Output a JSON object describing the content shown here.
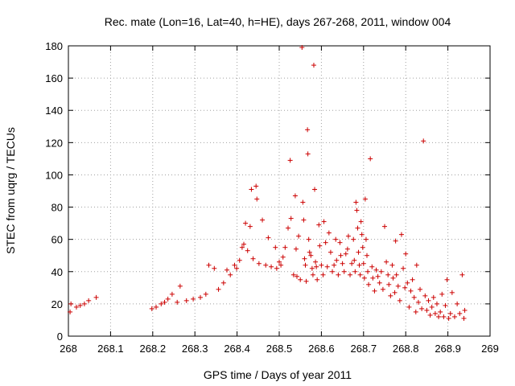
{
  "chart_data": {
    "type": "scatter",
    "title": "Rec. mate (Lon=16, Lat=40, h=HE), days 267-268, 2011, window 004",
    "xlabel": "GPS time / Days of year 2011",
    "ylabel": "STEC from uqrg / TECUs",
    "xlim": [
      268,
      269
    ],
    "ylim": [
      0,
      180
    ],
    "xticks": [
      "268",
      "268.1",
      "268.2",
      "268.3",
      "268.4",
      "268.5",
      "268.6",
      "268.7",
      "268.8",
      "268.9",
      "269"
    ],
    "yticks": [
      "0",
      "20",
      "40",
      "60",
      "80",
      "100",
      "120",
      "140",
      "160",
      "180"
    ],
    "xtick_values": [
      268,
      268.1,
      268.2,
      268.3,
      268.4,
      268.5,
      268.6,
      268.7,
      268.8,
      268.9,
      269
    ],
    "ytick_values": [
      0,
      20,
      40,
      60,
      80,
      100,
      120,
      140,
      160,
      180
    ],
    "grid": true,
    "marker": "+",
    "marker_color": "#cc0000",
    "points": [
      [
        268.004,
        15
      ],
      [
        268.006,
        20
      ],
      [
        268.019,
        18
      ],
      [
        268.028,
        19
      ],
      [
        268.038,
        20
      ],
      [
        268.048,
        22
      ],
      [
        268.066,
        24
      ],
      [
        268.198,
        17
      ],
      [
        268.208,
        18
      ],
      [
        268.22,
        20
      ],
      [
        268.228,
        21
      ],
      [
        268.236,
        23
      ],
      [
        268.246,
        26
      ],
      [
        268.258,
        21
      ],
      [
        268.265,
        31
      ],
      [
        268.28,
        22
      ],
      [
        268.296,
        23
      ],
      [
        268.313,
        24
      ],
      [
        268.326,
        26
      ],
      [
        268.333,
        44
      ],
      [
        268.346,
        42
      ],
      [
        268.356,
        29
      ],
      [
        268.368,
        33
      ],
      [
        268.376,
        41
      ],
      [
        268.384,
        38
      ],
      [
        268.394,
        44
      ],
      [
        268.399,
        42
      ],
      [
        268.406,
        47
      ],
      [
        268.412,
        55
      ],
      [
        268.416,
        57
      ],
      [
        268.42,
        70
      ],
      [
        268.425,
        53
      ],
      [
        268.431,
        68
      ],
      [
        268.434,
        91
      ],
      [
        268.438,
        48
      ],
      [
        268.445,
        93
      ],
      [
        268.447,
        85
      ],
      [
        268.452,
        45
      ],
      [
        268.46,
        72
      ],
      [
        268.468,
        44
      ],
      [
        268.474,
        61
      ],
      [
        268.481,
        43
      ],
      [
        268.491,
        55
      ],
      [
        268.494,
        42
      ],
      [
        268.5,
        46
      ],
      [
        268.504,
        44
      ],
      [
        268.509,
        49
      ],
      [
        268.514,
        55
      ],
      [
        268.521,
        67
      ],
      [
        268.526,
        109
      ],
      [
        268.528,
        73
      ],
      [
        268.534,
        38
      ],
      [
        268.538,
        87
      ],
      [
        268.54,
        54
      ],
      [
        268.542,
        37
      ],
      [
        268.546,
        62
      ],
      [
        268.55,
        35
      ],
      [
        268.554,
        179
      ],
      [
        268.556,
        83
      ],
      [
        268.558,
        72
      ],
      [
        268.56,
        48
      ],
      [
        268.562,
        44
      ],
      [
        268.564,
        34
      ],
      [
        268.567,
        128
      ],
      [
        268.568,
        113
      ],
      [
        268.57,
        60
      ],
      [
        268.572,
        52
      ],
      [
        268.575,
        50
      ],
      [
        268.578,
        42
      ],
      [
        268.58,
        38
      ],
      [
        268.582,
        168
      ],
      [
        268.584,
        91
      ],
      [
        268.586,
        46
      ],
      [
        268.588,
        43
      ],
      [
        268.59,
        35
      ],
      [
        268.594,
        69
      ],
      [
        268.596,
        56
      ],
      [
        268.6,
        44
      ],
      [
        268.604,
        38
      ],
      [
        268.606,
        71
      ],
      [
        268.61,
        58
      ],
      [
        268.614,
        43
      ],
      [
        268.618,
        64
      ],
      [
        268.622,
        52
      ],
      [
        268.626,
        40
      ],
      [
        268.63,
        44
      ],
      [
        268.634,
        60
      ],
      [
        268.636,
        47
      ],
      [
        268.64,
        38
      ],
      [
        268.644,
        58
      ],
      [
        268.646,
        50
      ],
      [
        268.65,
        45
      ],
      [
        268.654,
        40
      ],
      [
        268.658,
        51
      ],
      [
        268.662,
        54
      ],
      [
        268.664,
        62
      ],
      [
        268.668,
        38
      ],
      [
        268.672,
        45
      ],
      [
        268.676,
        60
      ],
      [
        268.678,
        47
      ],
      [
        268.68,
        40
      ],
      [
        268.682,
        83
      ],
      [
        268.684,
        78
      ],
      [
        268.686,
        67
      ],
      [
        268.688,
        52
      ],
      [
        268.69,
        44
      ],
      [
        268.692,
        38
      ],
      [
        268.694,
        71
      ],
      [
        268.696,
        63
      ],
      [
        268.698,
        55
      ],
      [
        268.7,
        45
      ],
      [
        268.702,
        36
      ],
      [
        268.704,
        85
      ],
      [
        268.706,
        60
      ],
      [
        268.708,
        50
      ],
      [
        268.71,
        40
      ],
      [
        268.712,
        32
      ],
      [
        268.716,
        110
      ],
      [
        268.72,
        43
      ],
      [
        268.722,
        36
      ],
      [
        268.726,
        28
      ],
      [
        268.73,
        41
      ],
      [
        268.734,
        37
      ],
      [
        268.738,
        33
      ],
      [
        268.742,
        40
      ],
      [
        268.746,
        29
      ],
      [
        268.75,
        68
      ],
      [
        268.754,
        46
      ],
      [
        268.758,
        38
      ],
      [
        268.76,
        32
      ],
      [
        268.764,
        25
      ],
      [
        268.768,
        44
      ],
      [
        268.77,
        36
      ],
      [
        268.774,
        27
      ],
      [
        268.776,
        59
      ],
      [
        268.778,
        38
      ],
      [
        268.782,
        31
      ],
      [
        268.786,
        22
      ],
      [
        268.79,
        63
      ],
      [
        268.794,
        42
      ],
      [
        268.798,
        30
      ],
      [
        268.8,
        51
      ],
      [
        268.804,
        33
      ],
      [
        268.808,
        18
      ],
      [
        268.812,
        28
      ],
      [
        268.816,
        35
      ],
      [
        268.82,
        24
      ],
      [
        268.824,
        15
      ],
      [
        268.826,
        44
      ],
      [
        268.83,
        21
      ],
      [
        268.834,
        29
      ],
      [
        268.838,
        17
      ],
      [
        268.842,
        121
      ],
      [
        268.846,
        25
      ],
      [
        268.85,
        16
      ],
      [
        268.854,
        22
      ],
      [
        268.858,
        13
      ],
      [
        268.862,
        18
      ],
      [
        268.866,
        24
      ],
      [
        268.87,
        14
      ],
      [
        268.874,
        20
      ],
      [
        268.878,
        12
      ],
      [
        268.882,
        15
      ],
      [
        268.886,
        26
      ],
      [
        268.89,
        12
      ],
      [
        268.894,
        19
      ],
      [
        268.898,
        35
      ],
      [
        268.902,
        11
      ],
      [
        268.906,
        14
      ],
      [
        268.91,
        27
      ],
      [
        268.916,
        12
      ],
      [
        268.922,
        20
      ],
      [
        268.928,
        14
      ],
      [
        268.934,
        38
      ],
      [
        268.938,
        11
      ],
      [
        268.94,
        16
      ]
    ]
  }
}
